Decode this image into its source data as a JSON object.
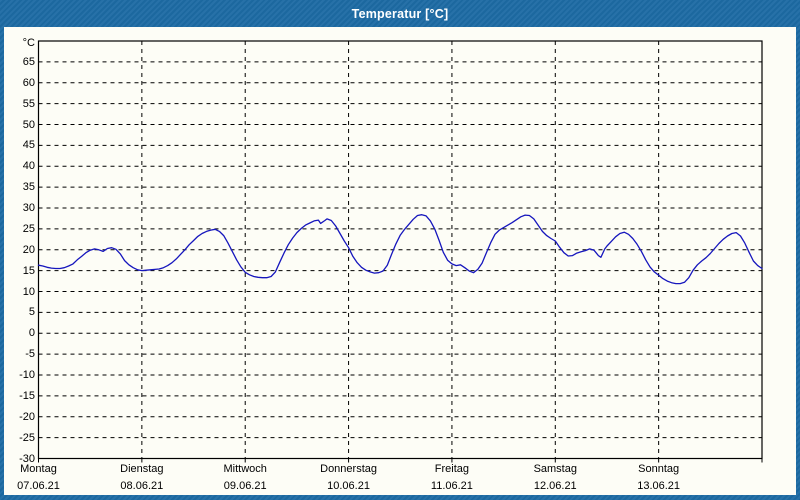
{
  "window": {
    "title": "Temperatur [°C]",
    "title_bar_color": "#1d6ba4",
    "content_background": "#fdfdf6"
  },
  "chart_data": {
    "type": "line",
    "title": "Temperatur [°C]",
    "unit": "°C",
    "ylabel": "°C",
    "xlabel": "",
    "ylim": [
      -30,
      70
    ],
    "ytick_min": -30,
    "ytick_max": 65,
    "ytick_step": 5,
    "xlim_hours": [
      0,
      168
    ],
    "grid": "dashed",
    "legend_position": "none",
    "frame_color": "#000000",
    "grid_color": "#000000",
    "line_color": "#1616bd",
    "days": [
      {
        "name": "Montag",
        "date": "07.06.21"
      },
      {
        "name": "Dienstag",
        "date": "08.06.21"
      },
      {
        "name": "Mittwoch",
        "date": "09.06.21"
      },
      {
        "name": "Donnerstag",
        "date": "10.06.21"
      },
      {
        "name": "Freitag",
        "date": "11.06.21"
      },
      {
        "name": "Samstag",
        "date": "12.06.21"
      },
      {
        "name": "Sonntag",
        "date": "13.06.21"
      }
    ],
    "series": [
      {
        "name": "Temperatur",
        "points": [
          [
            0,
            16.3
          ],
          [
            1,
            16.1
          ],
          [
            2,
            15.8
          ],
          [
            3,
            15.6
          ],
          [
            4,
            15.5
          ],
          [
            5,
            15.5
          ],
          [
            6,
            15.7
          ],
          [
            7,
            16.1
          ],
          [
            8,
            16.6
          ],
          [
            9,
            17.6
          ],
          [
            10,
            18.4
          ],
          [
            11,
            19.3
          ],
          [
            12,
            19.9
          ],
          [
            13,
            20.2
          ],
          [
            14,
            20.0
          ],
          [
            15,
            19.6
          ],
          [
            16,
            20.3
          ],
          [
            17,
            20.5
          ],
          [
            18,
            20.1
          ],
          [
            19,
            19.0
          ],
          [
            20,
            17.4
          ],
          [
            21,
            16.4
          ],
          [
            22,
            15.7
          ],
          [
            23,
            15.2
          ],
          [
            24,
            15.0
          ],
          [
            25,
            15.1
          ],
          [
            26,
            15.2
          ],
          [
            27,
            15.3
          ],
          [
            28,
            15.4
          ],
          [
            29,
            15.7
          ],
          [
            30,
            16.2
          ],
          [
            31,
            16.9
          ],
          [
            32,
            17.8
          ],
          [
            33,
            18.9
          ],
          [
            34,
            20.0
          ],
          [
            35,
            21.2
          ],
          [
            36,
            22.2
          ],
          [
            37,
            23.2
          ],
          [
            38,
            23.9
          ],
          [
            39,
            24.4
          ],
          [
            40,
            24.7
          ],
          [
            41,
            24.9
          ],
          [
            42,
            24.4
          ],
          [
            43,
            23.4
          ],
          [
            44,
            21.6
          ],
          [
            45,
            19.6
          ],
          [
            46,
            17.6
          ],
          [
            47,
            15.9
          ],
          [
            48,
            14.6
          ],
          [
            49,
            14.0
          ],
          [
            50,
            13.6
          ],
          [
            51,
            13.4
          ],
          [
            52,
            13.3
          ],
          [
            53,
            13.3
          ],
          [
            54,
            13.6
          ],
          [
            55,
            14.7
          ],
          [
            56,
            17.0
          ],
          [
            57,
            19.2
          ],
          [
            58,
            21.2
          ],
          [
            59,
            22.8
          ],
          [
            60,
            24.1
          ],
          [
            61,
            25.1
          ],
          [
            62,
            25.9
          ],
          [
            63,
            26.4
          ],
          [
            64,
            26.9
          ],
          [
            65,
            27.1
          ],
          [
            65.5,
            26.3
          ],
          [
            66.5,
            27.0
          ],
          [
            67,
            27.4
          ],
          [
            68,
            27.0
          ],
          [
            69,
            25.7
          ],
          [
            70,
            23.9
          ],
          [
            71,
            22.1
          ],
          [
            72,
            20.5
          ],
          [
            73,
            18.4
          ],
          [
            74,
            16.9
          ],
          [
            75,
            15.8
          ],
          [
            76,
            15.1
          ],
          [
            77,
            14.7
          ],
          [
            78,
            14.4
          ],
          [
            79,
            14.5
          ],
          [
            80,
            14.9
          ],
          [
            81,
            16.3
          ],
          [
            82,
            18.9
          ],
          [
            83,
            21.4
          ],
          [
            84,
            23.5
          ],
          [
            85,
            24.9
          ],
          [
            86,
            26.1
          ],
          [
            87,
            27.3
          ],
          [
            88,
            28.2
          ],
          [
            89,
            28.4
          ],
          [
            90,
            28.1
          ],
          [
            91,
            26.9
          ],
          [
            92,
            25.0
          ],
          [
            93,
            22.3
          ],
          [
            94,
            19.4
          ],
          [
            95,
            17.5
          ],
          [
            96,
            16.6
          ],
          [
            97,
            16.2
          ],
          [
            98,
            16.4
          ],
          [
            99,
            15.7
          ],
          [
            100,
            14.9
          ],
          [
            101,
            14.5
          ],
          [
            102,
            15.3
          ],
          [
            103,
            16.8
          ],
          [
            104,
            19.3
          ],
          [
            105,
            21.7
          ],
          [
            106,
            23.7
          ],
          [
            107,
            24.7
          ],
          [
            108,
            25.3
          ],
          [
            109,
            25.9
          ],
          [
            110,
            26.5
          ],
          [
            111,
            27.2
          ],
          [
            112,
            27.9
          ],
          [
            113,
            28.3
          ],
          [
            114,
            28.2
          ],
          [
            115,
            27.4
          ],
          [
            116,
            25.9
          ],
          [
            117,
            24.4
          ],
          [
            118,
            23.4
          ],
          [
            119,
            22.7
          ],
          [
            120,
            22.1
          ],
          [
            121,
            20.6
          ],
          [
            122,
            19.3
          ],
          [
            123,
            18.5
          ],
          [
            124,
            18.6
          ],
          [
            125,
            19.2
          ],
          [
            126,
            19.5
          ],
          [
            127,
            19.8
          ],
          [
            128,
            20.2
          ],
          [
            129,
            19.9
          ],
          [
            130,
            18.6
          ],
          [
            130.6,
            18.2
          ],
          [
            131.5,
            20.2
          ],
          [
            132,
            20.9
          ],
          [
            133,
            22.0
          ],
          [
            134,
            23.1
          ],
          [
            135,
            23.9
          ],
          [
            136,
            24.2
          ],
          [
            137,
            23.7
          ],
          [
            138,
            22.7
          ],
          [
            139,
            21.3
          ],
          [
            140,
            19.6
          ],
          [
            141,
            17.6
          ],
          [
            142,
            15.9
          ],
          [
            143,
            14.7
          ],
          [
            144,
            13.9
          ],
          [
            145,
            13.1
          ],
          [
            146,
            12.5
          ],
          [
            147,
            12.1
          ],
          [
            148,
            11.9
          ],
          [
            149,
            11.9
          ],
          [
            150,
            12.2
          ],
          [
            151,
            13.3
          ],
          [
            152,
            15.1
          ],
          [
            153,
            16.4
          ],
          [
            154,
            17.3
          ],
          [
            155,
            18.1
          ],
          [
            156,
            19.1
          ],
          [
            157,
            20.3
          ],
          [
            158,
            21.5
          ],
          [
            159,
            22.5
          ],
          [
            160,
            23.3
          ],
          [
            161,
            23.9
          ],
          [
            162,
            24.1
          ],
          [
            163,
            23.3
          ],
          [
            164,
            21.6
          ],
          [
            165,
            19.4
          ],
          [
            166,
            17.3
          ],
          [
            167,
            16.2
          ],
          [
            168,
            15.5
          ]
        ]
      }
    ]
  }
}
